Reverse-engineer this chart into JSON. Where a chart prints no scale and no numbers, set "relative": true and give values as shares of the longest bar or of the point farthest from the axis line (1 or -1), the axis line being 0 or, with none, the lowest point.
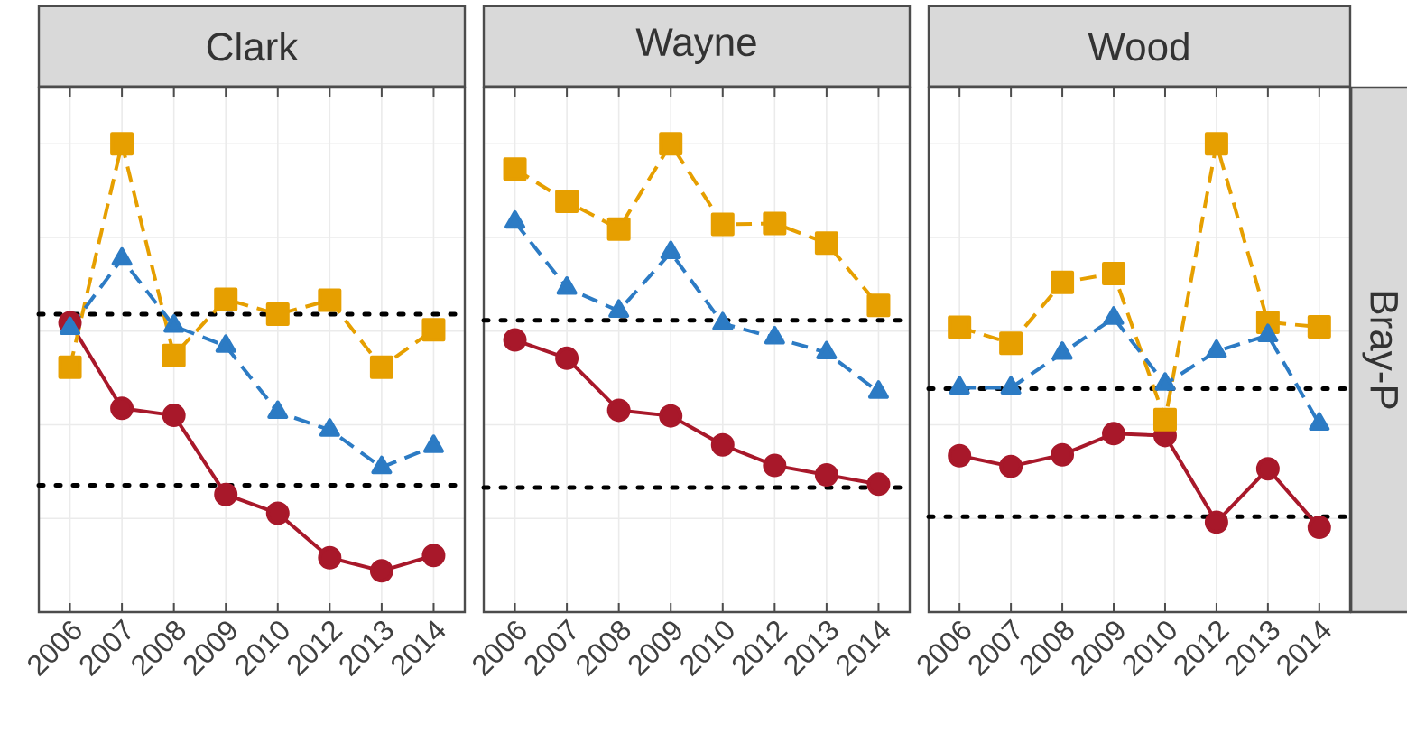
{
  "chart_data": [
    {
      "type": "line",
      "title": "Clark",
      "relative": true,
      "grid": true,
      "tick_labels": "x",
      "categories": [
        "2006",
        "2007",
        "2008",
        "2009",
        "2010",
        "2012",
        "2013",
        "2014"
      ],
      "series": [
        {
          "color": "#a8182a",
          "marker": "circle",
          "line_style": "solid",
          "values": [
            0.618,
            0.435,
            0.42,
            0.251,
            0.211,
            0.116,
            0.088,
            0.121
          ]
        },
        {
          "color": "#e69f00",
          "marker": "square",
          "line_style": "dashed",
          "values": [
            0.523,
            1,
            0.548,
            0.668,
            0.636,
            0.666,
            0.523,
            0.603
          ]
        },
        {
          "color": "#2c7bc4",
          "marker": "triangle",
          "line_style": "dashed",
          "values": [
            0.606,
            0.754,
            0.611,
            0.568,
            0.427,
            0.389,
            0.309,
            0.354
          ]
        }
      ],
      "ref_lines": [
        {
          "axis": "y",
          "value": 0.636,
          "color": "#000000",
          "line_style": "dotted"
        },
        {
          "axis": "y",
          "value": 0.271,
          "color": "#000000",
          "line_style": "dotted"
        }
      ]
    },
    {
      "type": "line",
      "title": "Wayne",
      "relative": true,
      "grid": true,
      "tick_labels": "x",
      "categories": [
        "2006",
        "2007",
        "2008",
        "2009",
        "2010",
        "2012",
        "2013",
        "2014"
      ],
      "series": [
        {
          "color": "#a8182a",
          "marker": "circle",
          "line_style": "solid",
          "values": [
            0.581,
            0.542,
            0.431,
            0.419,
            0.357,
            0.313,
            0.293,
            0.273
          ]
        },
        {
          "color": "#e69f00",
          "marker": "square",
          "line_style": "dashed",
          "values": [
            0.946,
            0.877,
            0.818,
            1,
            0.828,
            0.83,
            0.788,
            0.655
          ]
        },
        {
          "color": "#2c7bc4",
          "marker": "triangle",
          "line_style": "dashed",
          "values": [
            0.833,
            0.692,
            0.643,
            0.768,
            0.616,
            0.586,
            0.554,
            0.47
          ]
        }
      ],
      "ref_lines": [
        {
          "axis": "y",
          "value": 0.623,
          "color": "#000000",
          "line_style": "dotted"
        },
        {
          "axis": "y",
          "value": 0.266,
          "color": "#000000",
          "line_style": "dotted"
        }
      ]
    },
    {
      "type": "line",
      "title": "Wood",
      "y2label": "Bray-P",
      "relative": true,
      "grid": true,
      "tick_labels": "x",
      "categories": [
        "2006",
        "2007",
        "2008",
        "2009",
        "2010",
        "2012",
        "2013",
        "2014"
      ],
      "series": [
        {
          "color": "#a8182a",
          "marker": "circle",
          "line_style": "solid",
          "values": [
            0.334,
            0.311,
            0.336,
            0.381,
            0.377,
            0.192,
            0.306,
            0.181
          ]
        },
        {
          "color": "#e69f00",
          "marker": "square",
          "line_style": "dashed",
          "values": [
            0.608,
            0.574,
            0.704,
            0.723,
            0.411,
            1,
            0.619,
            0.609
          ]
        },
        {
          "color": "#2c7bc4",
          "marker": "triangle",
          "line_style": "dashed",
          "values": [
            0.479,
            0.479,
            0.553,
            0.628,
            0.487,
            0.557,
            0.591,
            0.402
          ]
        }
      ],
      "ref_lines": [
        {
          "axis": "y",
          "value": 0.477,
          "color": "#000000",
          "line_style": "dotted"
        },
        {
          "axis": "y",
          "value": 0.204,
          "color": "#000000",
          "line_style": "dotted"
        }
      ]
    }
  ]
}
